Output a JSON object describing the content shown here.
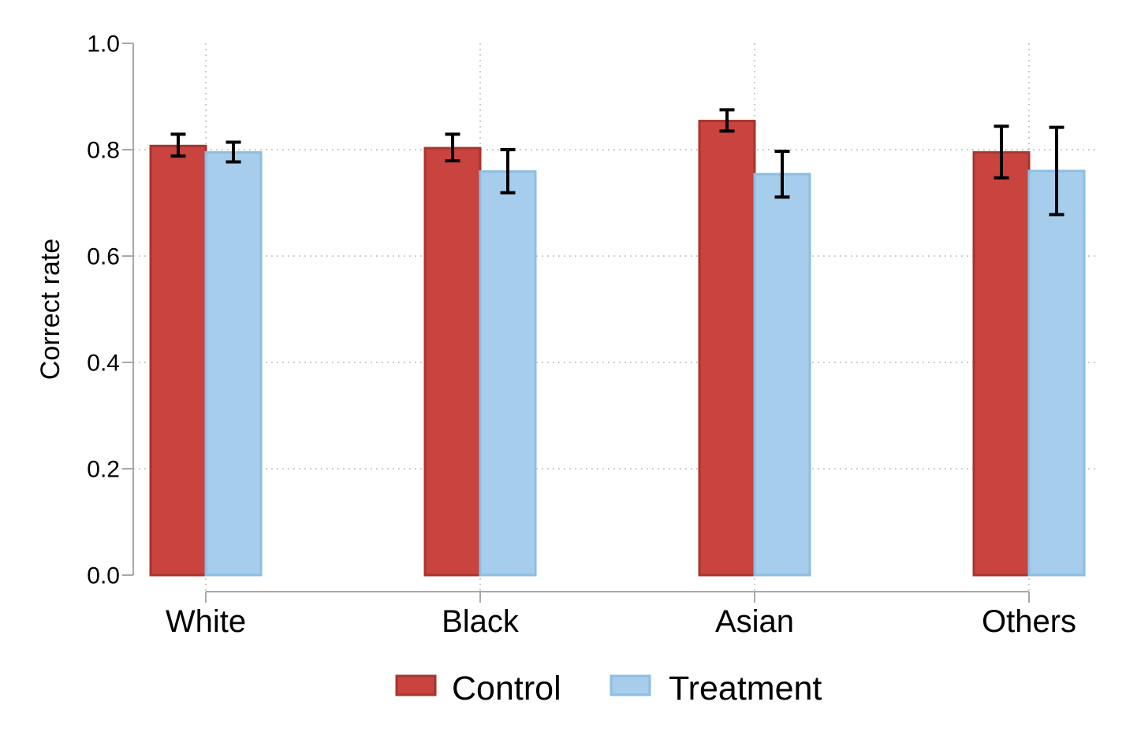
{
  "chart_data": {
    "type": "bar",
    "title": "",
    "xlabel": "",
    "ylabel": "Correct rate",
    "ylim": [
      0.0,
      1.0
    ],
    "yticks": [
      0.0,
      0.2,
      0.4,
      0.6,
      0.8,
      1.0
    ],
    "ytick_labels": [
      "0.0",
      "0.2",
      "0.4",
      "0.6",
      "0.8",
      "1.0"
    ],
    "categories": [
      "White",
      "Black",
      "Asian",
      "Others"
    ],
    "series": [
      {
        "name": "Control",
        "fill_color": "#C9443E",
        "border_color": "#A5362E",
        "values": [
          0.807,
          0.803,
          0.854,
          0.795
        ],
        "ci_low": [
          0.788,
          0.779,
          0.835,
          0.747
        ],
        "ci_high": [
          0.829,
          0.829,
          0.875,
          0.844
        ]
      },
      {
        "name": "Treatment",
        "fill_color": "#A6CDEC",
        "border_color": "#8CBEE2",
        "values": [
          0.795,
          0.759,
          0.754,
          0.76
        ],
        "ci_low": [
          0.777,
          0.719,
          0.711,
          0.678
        ],
        "ci_high": [
          0.814,
          0.8,
          0.797,
          0.842
        ]
      }
    ],
    "error_bars": true,
    "error_bar_color": "#000000",
    "grid": {
      "horizontal_lines_at": [
        0.2,
        0.4,
        0.6,
        0.8
      ],
      "vertical_lines_at_category_centers": true,
      "style": "dotted",
      "color": "#BDBDBD"
    },
    "axis_color": "#A8A8A8",
    "legend": {
      "position": "bottom-center",
      "entries": [
        "Control",
        "Treatment"
      ]
    }
  }
}
